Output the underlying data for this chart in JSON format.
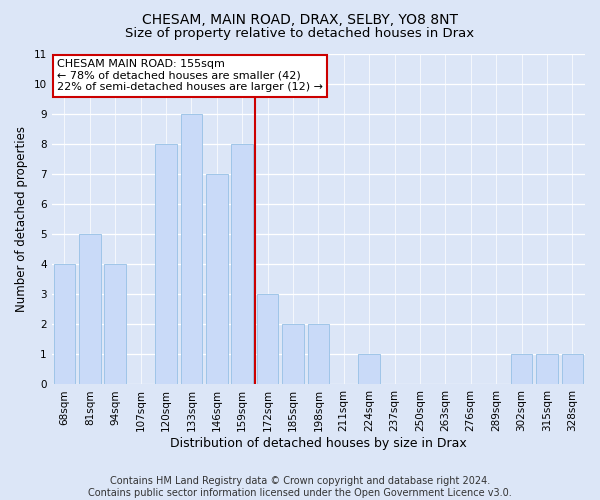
{
  "title": "CHESAM, MAIN ROAD, DRAX, SELBY, YO8 8NT",
  "subtitle": "Size of property relative to detached houses in Drax",
  "xlabel": "Distribution of detached houses by size in Drax",
  "ylabel": "Number of detached properties",
  "categories": [
    "68sqm",
    "81sqm",
    "94sqm",
    "107sqm",
    "120sqm",
    "133sqm",
    "146sqm",
    "159sqm",
    "172sqm",
    "185sqm",
    "198sqm",
    "211sqm",
    "224sqm",
    "237sqm",
    "250sqm",
    "263sqm",
    "276sqm",
    "289sqm",
    "302sqm",
    "315sqm",
    "328sqm"
  ],
  "values": [
    4,
    5,
    4,
    0,
    8,
    9,
    7,
    8,
    3,
    2,
    2,
    0,
    1,
    0,
    0,
    0,
    0,
    0,
    1,
    1,
    1
  ],
  "bar_color": "#c9daf8",
  "bar_edge_color": "#9fc5e8",
  "vline_x": 7.5,
  "vline_color": "#cc0000",
  "annotation_text": "CHESAM MAIN ROAD: 155sqm\n← 78% of detached houses are smaller (42)\n22% of semi-detached houses are larger (12) →",
  "annotation_box_facecolor": "#ffffff",
  "annotation_box_edgecolor": "#cc0000",
  "ylim": [
    0,
    11
  ],
  "yticks": [
    0,
    1,
    2,
    3,
    4,
    5,
    6,
    7,
    8,
    9,
    10,
    11
  ],
  "footer": "Contains HM Land Registry data © Crown copyright and database right 2024.\nContains public sector information licensed under the Open Government Licence v3.0.",
  "bg_color": "#dce6f7",
  "plot_bg_color": "#dce6f7",
  "grid_color": "#ffffff",
  "title_fontsize": 10,
  "subtitle_fontsize": 9.5,
  "xlabel_fontsize": 9,
  "ylabel_fontsize": 8.5,
  "tick_fontsize": 7.5,
  "annotation_fontsize": 8,
  "footer_fontsize": 7
}
